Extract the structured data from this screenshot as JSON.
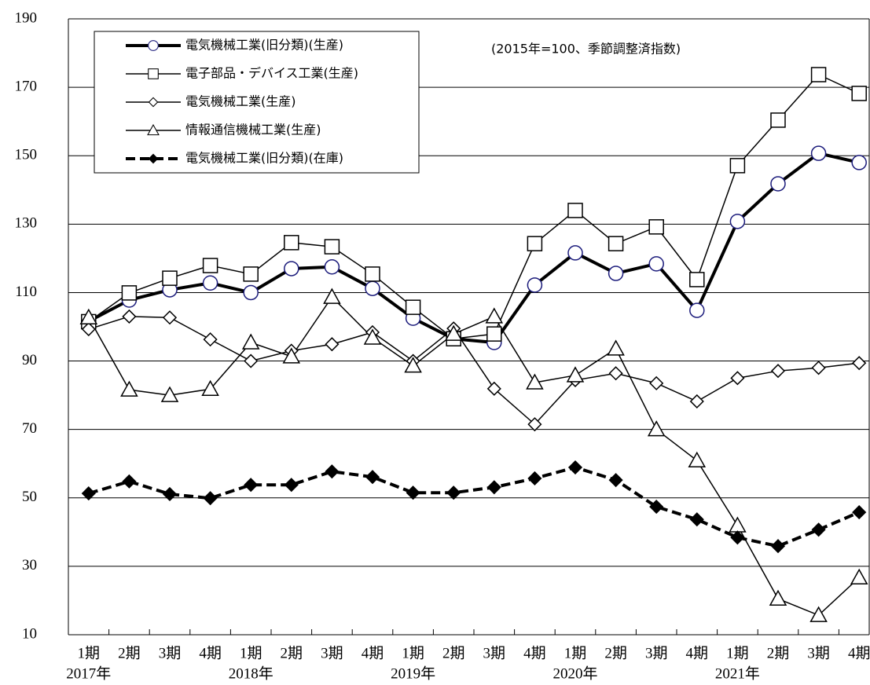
{
  "chart_data": {
    "type": "line",
    "annotation": "(2015年=100、季節調整済指数)",
    "categories": [
      "1期",
      "2期",
      "3期",
      "4期",
      "1期",
      "2期",
      "3期",
      "4期",
      "1期",
      "2期",
      "3期",
      "4期",
      "1期",
      "2期",
      "3期",
      "4期",
      "1期",
      "2期",
      "3期",
      "4期"
    ],
    "category_groups": [
      "2017年",
      null,
      null,
      null,
      "2018年",
      null,
      null,
      null,
      "2019年",
      null,
      null,
      null,
      "2020年",
      null,
      null,
      null,
      "2021年",
      null,
      null,
      null
    ],
    "ylim": [
      10,
      190
    ],
    "yticks": [
      10,
      30,
      50,
      70,
      90,
      110,
      130,
      150,
      170,
      190
    ],
    "grid": true,
    "series": [
      {
        "name": "電気機械工業(旧分類)(生産)",
        "color": "#000000",
        "marker_color": "#1c1c7c",
        "marker": "circle",
        "line_width": 4,
        "dashed": false,
        "values": [
          101.6,
          107.8,
          110.8,
          112.8,
          110,
          117,
          117.5,
          111.2,
          102.5,
          96.5,
          95.4,
          112.2,
          121.6,
          115.6,
          118.4,
          104.8,
          130.8,
          141.8,
          150.7,
          148
        ]
      },
      {
        "name": "電子部品・デバイス工業(生産)",
        "color": "#000000",
        "marker_color": "#000000",
        "marker": "square",
        "line_width": 1.5,
        "dashed": false,
        "values": [
          101.5,
          109.9,
          114.2,
          117.9,
          115.4,
          124.6,
          123.4,
          115.4,
          105.7,
          96.5,
          97.9,
          124.3,
          134,
          124.3,
          129.2,
          113.8,
          147.1,
          160.4,
          173.7,
          168.2
        ]
      },
      {
        "name": "電気機械工業(生産)",
        "color": "#000000",
        "marker_color": "#000000",
        "marker": "diamond",
        "line_width": 1.5,
        "dashed": false,
        "values": [
          99.3,
          103,
          102.7,
          96.3,
          90,
          93,
          94.9,
          98.4,
          90,
          99.5,
          81.9,
          71.5,
          84.4,
          86.4,
          83.5,
          78.2,
          85,
          87.1,
          88,
          89.4
        ]
      },
      {
        "name": "情報通信機械工業(生産)",
        "color": "#000000",
        "marker_color": "#000000",
        "marker": "triangle",
        "line_width": 1.5,
        "dashed": false,
        "values": [
          102.7,
          81.6,
          80,
          81.8,
          95.4,
          91.3,
          108.7,
          96.8,
          88.6,
          97.9,
          103,
          83.7,
          85.8,
          93.6,
          70,
          60.9,
          41.9,
          20.5,
          15.7,
          26.7
        ]
      },
      {
        "name": "電気機械工業(旧分類)(在庫)",
        "color": "#000000",
        "marker_color": "#000000",
        "marker": "filled-diamond",
        "line_width": 4,
        "dashed": true,
        "values": [
          51.3,
          54.8,
          51.1,
          49.9,
          53.8,
          53.8,
          57.7,
          56.1,
          51.5,
          51.5,
          53.1,
          55.7,
          58.9,
          55.2,
          47.4,
          43.7,
          38.4,
          35.9,
          40.7,
          45.8
        ]
      }
    ]
  }
}
